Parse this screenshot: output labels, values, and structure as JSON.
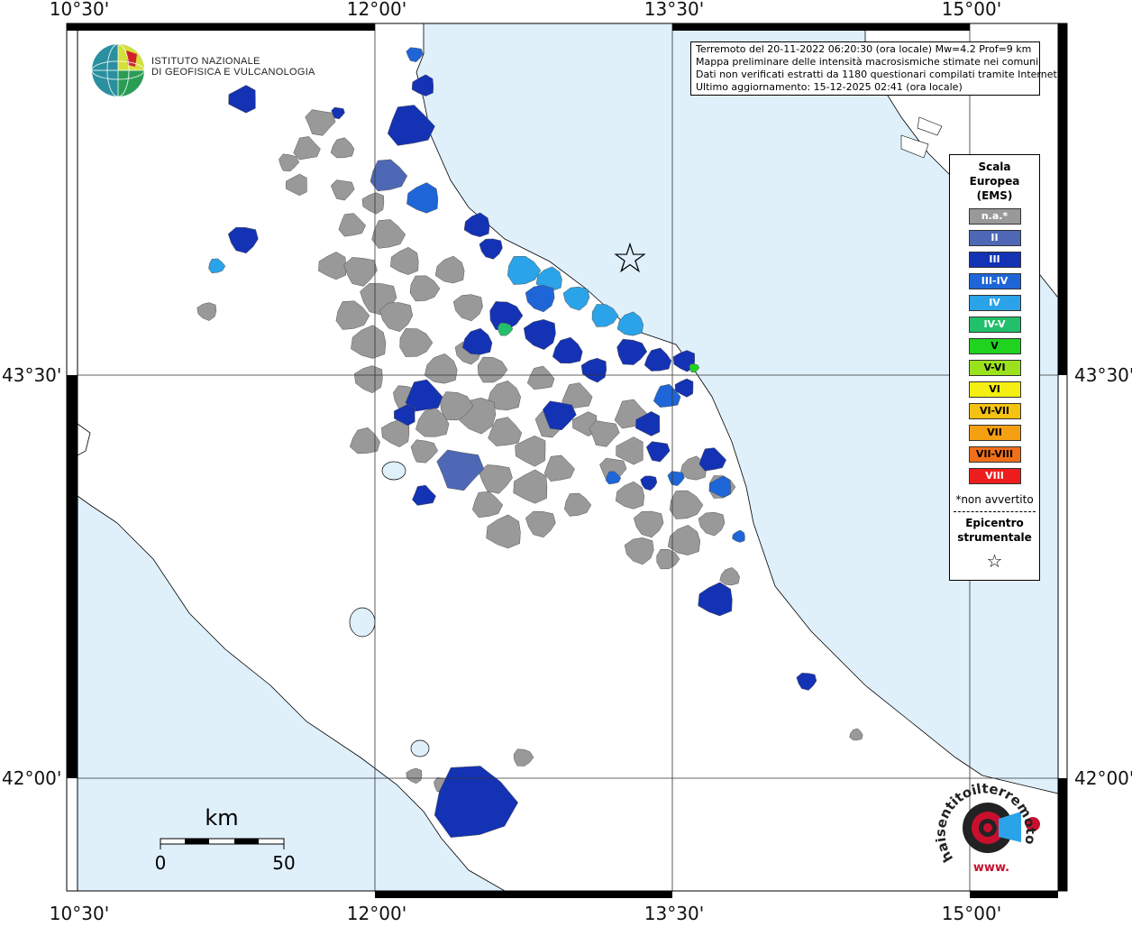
{
  "map": {
    "longitude_labels": [
      "10°30'",
      "12°00'",
      "13°30'",
      "15°00'"
    ],
    "latitude_labels": [
      "43°30'",
      "42°00'"
    ],
    "epicenter_symbol": "☆",
    "colors": {
      "sea": "#dff0fb",
      "land": "#ffffff",
      "na": "#999999",
      "II": "#4e68b5",
      "III": "#1432b4",
      "III-IV": "#1e66d8",
      "IV": "#2aa3e8",
      "IV-V": "#22c06a",
      "V": "#1fd31f"
    }
  },
  "info": {
    "line1": "Terremoto del 20-11-2022 06:20:30 (ora locale) Mw=4.2 Prof=9 km",
    "line2": "Mappa preliminare delle intensità macrosismiche stimate nei comuni",
    "line3": "Dati non verificati estratti da 1180 questionari compilati tramite Internet.",
    "line4": "Ultimo aggiornamento: 15-12-2025 02:41 (ora locale)"
  },
  "legend": {
    "title_line1": "Scala",
    "title_line2": "Europea",
    "title_line3": "(EMS)",
    "items": [
      {
        "label": "n.a.*",
        "color": "#999999",
        "text_color": "#ffffff"
      },
      {
        "label": "II",
        "color": "#4e68b5",
        "text_color": "#ffffff"
      },
      {
        "label": "III",
        "color": "#1432b4",
        "text_color": "#ffffff"
      },
      {
        "label": "III-IV",
        "color": "#1e66d8",
        "text_color": "#ffffff"
      },
      {
        "label": "IV",
        "color": "#2aa3e8",
        "text_color": "#ffffff"
      },
      {
        "label": "IV-V",
        "color": "#22c06a",
        "text_color": "#ffffff"
      },
      {
        "label": "V",
        "color": "#1fd31f",
        "text_color": "#000000"
      },
      {
        "label": "V-VI",
        "color": "#9be21e",
        "text_color": "#000000"
      },
      {
        "label": "VI",
        "color": "#f4ee12",
        "text_color": "#000000"
      },
      {
        "label": "VI-VII",
        "color": "#f5c211",
        "text_color": "#000000"
      },
      {
        "label": "VII",
        "color": "#f5a011",
        "text_color": "#000000"
      },
      {
        "label": "VII-VIII",
        "color": "#f0701a",
        "text_color": "#000000"
      },
      {
        "label": "VIII",
        "color": "#ee1c1c",
        "text_color": "#ffffff"
      }
    ],
    "note": "*non avvertito",
    "epicenter_line1": "Epicentro",
    "epicenter_line2": "strumentale",
    "epicenter_symbol": "☆"
  },
  "scale": {
    "unit": "km",
    "start": "0",
    "end": "50"
  },
  "logos": {
    "ingv_line1": "ISTITUTO NAZIONALE",
    "ingv_line2": "DI GEOFISICA E VULCANOLOGIA",
    "hsit_text": "haisentitoilterremoto.it",
    "hsit_www": "www."
  }
}
